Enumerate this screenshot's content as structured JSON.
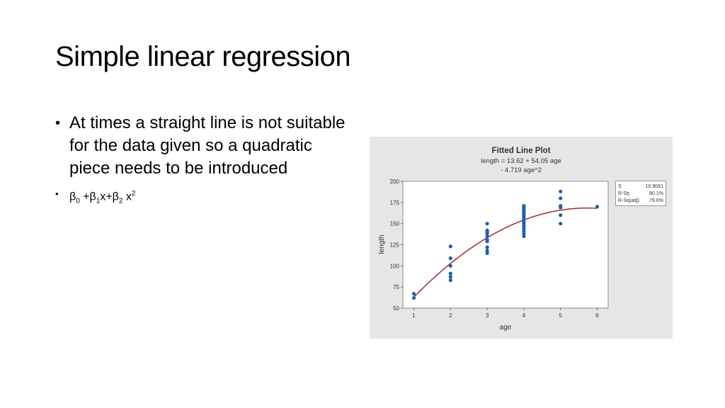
{
  "slide": {
    "title": "Simple linear regression",
    "bullet1": "At times a straight line is not suitable for the data given so a quadratic piece needs to be introduced",
    "bullet2": {
      "b0": "β",
      "s0": "0",
      "p1": " +β",
      "s1": "1",
      "p2": "x+β",
      "s2": "2",
      "p3": " x",
      "e2": "2"
    }
  },
  "chart_data": {
    "type": "scatter",
    "title": "Fitted Line Plot",
    "subtitle_line1": "length = 13.62 + 54.05 age",
    "subtitle_line2": "- 4.719 age^2",
    "xlabel": "age",
    "ylabel": "length",
    "xlim": [
      0.7,
      6.3
    ],
    "ylim": [
      50,
      200
    ],
    "x_ticks": [
      "1",
      "2",
      "3",
      "4",
      "5",
      "6"
    ],
    "y_ticks": [
      "50",
      "75",
      "100",
      "125",
      "150",
      "175",
      "200"
    ],
    "points": [
      {
        "x": 1,
        "y": 62
      },
      {
        "x": 1,
        "y": 67
      },
      {
        "x": 2,
        "y": 83
      },
      {
        "x": 2,
        "y": 87
      },
      {
        "x": 2,
        "y": 91
      },
      {
        "x": 2,
        "y": 100
      },
      {
        "x": 2,
        "y": 109
      },
      {
        "x": 2,
        "y": 123
      },
      {
        "x": 3,
        "y": 115
      },
      {
        "x": 3,
        "y": 118
      },
      {
        "x": 3,
        "y": 122
      },
      {
        "x": 3,
        "y": 129
      },
      {
        "x": 3,
        "y": 131
      },
      {
        "x": 3,
        "y": 135
      },
      {
        "x": 3,
        "y": 138
      },
      {
        "x": 3,
        "y": 140
      },
      {
        "x": 3,
        "y": 142
      },
      {
        "x": 3,
        "y": 150
      },
      {
        "x": 4,
        "y": 135
      },
      {
        "x": 4,
        "y": 138
      },
      {
        "x": 4,
        "y": 141
      },
      {
        "x": 4,
        "y": 144
      },
      {
        "x": 4,
        "y": 147
      },
      {
        "x": 4,
        "y": 150
      },
      {
        "x": 4,
        "y": 152
      },
      {
        "x": 4,
        "y": 155
      },
      {
        "x": 4,
        "y": 157
      },
      {
        "x": 4,
        "y": 159
      },
      {
        "x": 4,
        "y": 161
      },
      {
        "x": 4,
        "y": 163
      },
      {
        "x": 4,
        "y": 165
      },
      {
        "x": 4,
        "y": 167
      },
      {
        "x": 4,
        "y": 169
      },
      {
        "x": 4,
        "y": 171
      },
      {
        "x": 5,
        "y": 150
      },
      {
        "x": 5,
        "y": 160
      },
      {
        "x": 5,
        "y": 169
      },
      {
        "x": 5,
        "y": 171
      },
      {
        "x": 5,
        "y": 180
      },
      {
        "x": 5,
        "y": 188
      },
      {
        "x": 6,
        "y": 170
      }
    ],
    "fit": {
      "b0": 13.62,
      "b1": 54.05,
      "b2": -4.719
    },
    "stats": [
      {
        "label": "S",
        "value": "10.9061"
      },
      {
        "label": "R-Sq",
        "value": "80.1%"
      },
      {
        "label": "R-Sq(adj)",
        "value": "79.6%"
      }
    ],
    "colors": {
      "point": "#1f5fa8",
      "fit_line": "#a52a2a",
      "panel": "#e6e6e6"
    },
    "grid": false
  }
}
